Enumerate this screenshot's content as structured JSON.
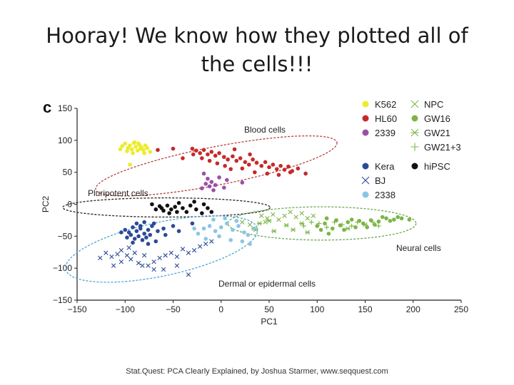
{
  "slide": {
    "title": "Hooray!  We know how they plotted all of the cells!!!",
    "footer": "Stat.Quest: PCA Clearly Explained, by Joshua Starmer, www.seqquest.com"
  },
  "chart_data": {
    "type": "scatter",
    "panel_label": "c",
    "xlabel": "PC1",
    "ylabel": "PC2",
    "xlim": [
      -150,
      250
    ],
    "ylim": [
      -150,
      150
    ],
    "xticks": [
      -150,
      -100,
      -50,
      0,
      50,
      100,
      150,
      200,
      250
    ],
    "yticks": [
      150,
      100,
      50,
      0,
      -50,
      -100,
      -150
    ],
    "grid": false,
    "legend_position": "top-right",
    "series": [
      {
        "name": "K562",
        "marker": "dot",
        "color": "#ecec2a",
        "points": [
          [
            -103,
            91
          ],
          [
            -100,
            95
          ],
          [
            -97,
            88
          ],
          [
            -95,
            92
          ],
          [
            -93,
            86
          ],
          [
            -91,
            96
          ],
          [
            -89,
            90
          ],
          [
            -87,
            84
          ],
          [
            -85,
            93
          ],
          [
            -83,
            89
          ],
          [
            -81,
            85
          ],
          [
            -79,
            92
          ],
          [
            -77,
            88
          ],
          [
            -105,
            86
          ],
          [
            -98,
            83
          ],
          [
            -92,
            80
          ],
          [
            -86,
            95
          ],
          [
            -80,
            80
          ],
          [
            -95,
            62
          ],
          [
            -74,
            82
          ],
          [
            -90,
            97
          ],
          [
            -84,
            87
          ]
        ]
      },
      {
        "name": "HL60",
        "marker": "dot",
        "color": "#c62a2a",
        "points": [
          [
            -30,
            87
          ],
          [
            -26,
            84
          ],
          [
            -22,
            80
          ],
          [
            -18,
            85
          ],
          [
            -14,
            78
          ],
          [
            -10,
            82
          ],
          [
            -6,
            76
          ],
          [
            -2,
            80
          ],
          [
            3,
            74
          ],
          [
            7,
            70
          ],
          [
            12,
            75
          ],
          [
            16,
            68
          ],
          [
            20,
            72
          ],
          [
            25,
            66
          ],
          [
            29,
            62
          ],
          [
            33,
            70
          ],
          [
            37,
            65
          ],
          [
            42,
            60
          ],
          [
            46,
            66
          ],
          [
            50,
            58
          ],
          [
            54,
            62
          ],
          [
            58,
            55
          ],
          [
            62,
            60
          ],
          [
            66,
            54
          ],
          [
            70,
            59
          ],
          [
            74,
            52
          ],
          [
            -29,
            78
          ],
          [
            -20,
            72
          ],
          [
            -12,
            68
          ],
          [
            -4,
            64
          ],
          [
            4,
            60
          ],
          [
            10,
            55
          ],
          [
            22,
            56
          ],
          [
            35,
            50
          ],
          [
            48,
            48
          ],
          [
            60,
            46
          ],
          [
            72,
            50
          ],
          [
            80,
            56
          ],
          [
            88,
            48
          ],
          [
            -66,
            85
          ],
          [
            -50,
            87
          ],
          [
            -40,
            72
          ],
          [
            14,
            86
          ],
          [
            30,
            78
          ]
        ]
      },
      {
        "name": "2339",
        "marker": "dot",
        "color": "#9b4fa8",
        "points": [
          [
            -18,
            48
          ],
          [
            -14,
            40
          ],
          [
            -10,
            35
          ],
          [
            -16,
            32
          ],
          [
            -6,
            30
          ],
          [
            -20,
            25
          ],
          [
            -2,
            42
          ],
          [
            6,
            38
          ],
          [
            -12,
            28
          ],
          [
            3,
            26
          ],
          [
            22,
            34
          ],
          [
            -8,
            22
          ]
        ]
      },
      {
        "name": "NPC",
        "marker": "x",
        "color": "#7cb547",
        "points": [
          [
            42,
            -18
          ],
          [
            48,
            -22
          ],
          [
            54,
            -16
          ],
          [
            60,
            -24
          ],
          [
            66,
            -18
          ],
          [
            72,
            -12
          ],
          [
            78,
            -20
          ],
          [
            84,
            -14
          ],
          [
            90,
            -22
          ],
          [
            96,
            -18
          ],
          [
            30,
            -32
          ],
          [
            36,
            -40
          ],
          [
            46,
            -28
          ],
          [
            22,
            -28
          ]
        ]
      },
      {
        "name": "GW16",
        "marker": "dot",
        "color": "#7cb547",
        "points": [
          [
            100,
            -34
          ],
          [
            108,
            -30
          ],
          [
            116,
            -38
          ],
          [
            124,
            -33
          ],
          [
            132,
            -28
          ],
          [
            140,
            -36
          ],
          [
            148,
            -30
          ],
          [
            156,
            -25
          ],
          [
            164,
            -27
          ],
          [
            172,
            -22
          ],
          [
            180,
            -24
          ],
          [
            188,
            -22
          ],
          [
            196,
            -24
          ],
          [
            112,
            -46
          ],
          [
            128,
            -40
          ],
          [
            136,
            -24
          ],
          [
            152,
            -36
          ],
          [
            168,
            -20
          ],
          [
            184,
            -20
          ],
          [
            120,
            -25
          ],
          [
            144,
            -26
          ],
          [
            160,
            -32
          ],
          [
            176,
            -26
          ],
          [
            110,
            -22
          ],
          [
            104,
            -40
          ]
        ]
      },
      {
        "name": "GW21",
        "marker": "asterisk",
        "color": "#7cb547",
        "points": [
          [
            34,
            -38
          ],
          [
            40,
            -30
          ],
          [
            50,
            -26
          ],
          [
            68,
            -33
          ],
          [
            84,
            -30
          ],
          [
            55,
            -42
          ],
          [
            75,
            -40
          ],
          [
            150,
            -32
          ],
          [
            132,
            -38
          ],
          [
            90,
            -44
          ]
        ]
      },
      {
        "name": "GW21+3",
        "marker": "plus",
        "color": "#7cb547",
        "points": [
          [
            86,
            -34
          ],
          [
            94,
            -28
          ],
          [
            102,
            -30
          ],
          [
            110,
            -36
          ],
          [
            118,
            -28
          ],
          [
            126,
            -32
          ],
          [
            136,
            -34
          ],
          [
            142,
            -28
          ],
          [
            158,
            -28
          ],
          [
            164,
            -34
          ]
        ]
      },
      {
        "name": "hiPSC",
        "marker": "dot",
        "color": "#111111",
        "points": [
          [
            -72,
            0
          ],
          [
            -68,
            -8
          ],
          [
            -64,
            -3
          ],
          [
            -60,
            -10
          ],
          [
            -56,
            -2
          ],
          [
            -52,
            -8
          ],
          [
            -48,
            -4
          ],
          [
            -46,
            -12
          ],
          [
            -40,
            -6
          ],
          [
            -32,
            -2
          ],
          [
            -26,
            -8
          ],
          [
            -20,
            -14
          ],
          [
            -14,
            -6
          ],
          [
            -10,
            -12
          ],
          [
            -36,
            -12
          ],
          [
            -62,
            -6
          ],
          [
            -54,
            -14
          ],
          [
            -44,
            2
          ],
          [
            -28,
            4
          ],
          [
            -18,
            0
          ]
        ]
      },
      {
        "name": "Kera",
        "marker": "dot",
        "color": "#2d4a98",
        "points": [
          [
            -100,
            -40
          ],
          [
            -96,
            -44
          ],
          [
            -92,
            -36
          ],
          [
            -88,
            -42
          ],
          [
            -84,
            -38
          ],
          [
            -80,
            -46
          ],
          [
            -76,
            -40
          ],
          [
            -72,
            -34
          ],
          [
            -98,
            -52
          ],
          [
            -94,
            -48
          ],
          [
            -90,
            -54
          ],
          [
            -86,
            -50
          ],
          [
            -82,
            -56
          ],
          [
            -78,
            -52
          ],
          [
            -74,
            -48
          ],
          [
            -70,
            -30
          ],
          [
            -66,
            -42
          ],
          [
            -104,
            -44
          ],
          [
            -88,
            -30
          ],
          [
            -80,
            -28
          ],
          [
            -60,
            -38
          ],
          [
            -50,
            -34
          ],
          [
            -44,
            -42
          ],
          [
            -30,
            -30
          ],
          [
            -68,
            -58
          ],
          [
            -92,
            -60
          ],
          [
            -76,
            -62
          ],
          [
            -58,
            -48
          ],
          [
            -84,
            -34
          ]
        ]
      },
      {
        "name": "BJ",
        "marker": "x",
        "color": "#2d4a98",
        "points": [
          [
            -120,
            -76
          ],
          [
            -114,
            -82
          ],
          [
            -108,
            -78
          ],
          [
            -104,
            -90
          ],
          [
            -98,
            -80
          ],
          [
            -94,
            -86
          ],
          [
            -90,
            -76
          ],
          [
            -86,
            -92
          ],
          [
            -80,
            -80
          ],
          [
            -76,
            -96
          ],
          [
            -70,
            -90
          ],
          [
            -64,
            -84
          ],
          [
            -58,
            -80
          ],
          [
            -52,
            -76
          ],
          [
            -46,
            -82
          ],
          [
            -40,
            -70
          ],
          [
            -34,
            -76
          ],
          [
            -28,
            -72
          ],
          [
            -22,
            -66
          ],
          [
            -16,
            -62
          ],
          [
            -10,
            -58
          ],
          [
            -104,
            -72
          ],
          [
            -82,
            -96
          ],
          [
            -70,
            -102
          ],
          [
            -60,
            -102
          ],
          [
            -46,
            -96
          ],
          [
            -34,
            -110
          ],
          [
            -96,
            -68
          ],
          [
            -126,
            -84
          ],
          [
            -112,
            -96
          ]
        ]
      },
      {
        "name": "2338",
        "marker": "dot",
        "color": "#8ac6e3",
        "points": [
          [
            -18,
            -38
          ],
          [
            -12,
            -34
          ],
          [
            -6,
            -42
          ],
          [
            0,
            -36
          ],
          [
            6,
            -30
          ],
          [
            12,
            -40
          ],
          [
            18,
            -34
          ],
          [
            24,
            -44
          ],
          [
            -24,
            -46
          ],
          [
            -16,
            -54
          ],
          [
            -2,
            -50
          ],
          [
            10,
            -56
          ],
          [
            22,
            -58
          ],
          [
            28,
            -48
          ],
          [
            34,
            -38
          ],
          [
            4,
            -22
          ],
          [
            -8,
            -24
          ],
          [
            16,
            -26
          ],
          [
            -28,
            -38
          ],
          [
            30,
            -62
          ]
        ]
      }
    ],
    "annotations": [
      {
        "text": "Blood cells"
      },
      {
        "text": "Pluripotent cells"
      },
      {
        "text": "Neural cells"
      },
      {
        "text": "Dermal or epidermal cells"
      }
    ]
  }
}
